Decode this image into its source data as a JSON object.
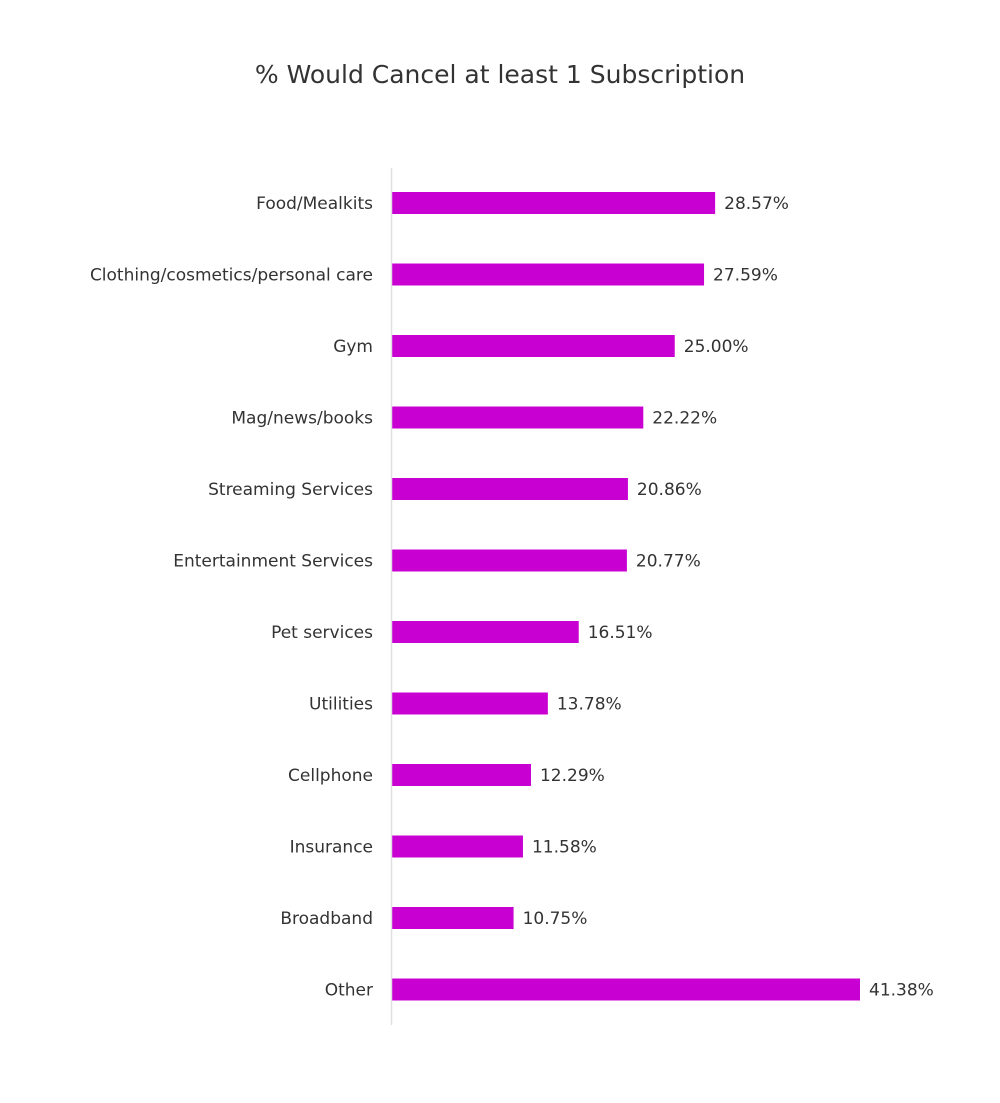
{
  "chart_data": {
    "type": "bar",
    "orientation": "horizontal",
    "title": "% Would Cancel at least 1 Subscription",
    "xlabel": "",
    "ylabel": "",
    "categories": [
      "Food/Mealkits",
      "Clothing/cosmetics/personal care",
      "Gym",
      "Mag/news/books",
      "Streaming Services",
      "Entertainment Services",
      "Pet services",
      "Utilities",
      "Cellphone",
      "Insurance",
      "Broadband",
      "Other"
    ],
    "values": [
      28.57,
      27.59,
      25.0,
      22.22,
      20.86,
      20.77,
      16.51,
      13.78,
      12.29,
      11.58,
      10.75,
      41.38
    ],
    "data_labels": [
      "28.57%",
      "27.59%",
      "25.00%",
      "22.22%",
      "20.86%",
      "20.77%",
      "16.51%",
      "13.78%",
      "12.29%",
      "11.58%",
      "10.75%",
      "41.38%"
    ],
    "xlim": [
      0,
      45
    ],
    "grid": false,
    "legend": "none",
    "bar_color": "#c800d2",
    "axis_color": "#e0e0e0"
  }
}
